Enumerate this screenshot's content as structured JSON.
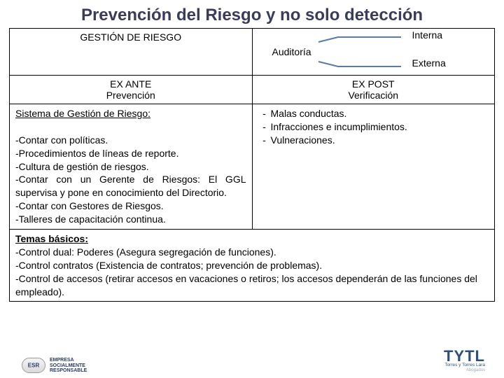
{
  "title": "Prevención del Riesgo y no solo detección",
  "header": {
    "left": "GESTIÓN DE RIESGO",
    "audit_label": "Auditoría",
    "audit_top": "Interna",
    "audit_bottom": "Externa"
  },
  "subheader": {
    "left_line1": "EX ANTE",
    "left_line2": "Prevención",
    "right_line1": "EX POST",
    "right_line2": "Verificación"
  },
  "left_content": {
    "heading": "Sistema de Gestión de Riesgo:",
    "items": [
      "-Contar con políticas.",
      "-Procedimientos de líneas de reporte.",
      "-Cultura de gestión de riesgos.",
      "-Contar con un Gerente de Riesgos: El GGL supervisa y pone en conocimiento del Directorio.",
      "-Contar con Gestores de Riesgos.",
      "-Talleres de capacitación continua."
    ]
  },
  "right_content": {
    "bullets": [
      "Malas conductas.",
      "Infracciones e incumplimientos.",
      "Vulneraciones."
    ]
  },
  "temas": {
    "title": "Temas básicos:",
    "items": [
      "-Control dual: Poderes (Asegura segregación de funciones).",
      "-Control contratos (Existencia de contratos; prevención de problemas).",
      "-Control de accesos (retirar accesos en vacaciones o retiros; los accesos dependerán de las funciones del empleado)."
    ]
  },
  "footer": {
    "esr_text": "EMPRESA\nSOCIALMENTE\nRESPONSABLE",
    "tytl": "TYTL",
    "tytl_sub": "Torres y Torres Lara",
    "tytl_abog": "Abogados"
  },
  "colors": {
    "title_color": "#3b3b5c",
    "bracket_color": "#5b7ba8",
    "tytl_color": "#2c4f7c"
  }
}
